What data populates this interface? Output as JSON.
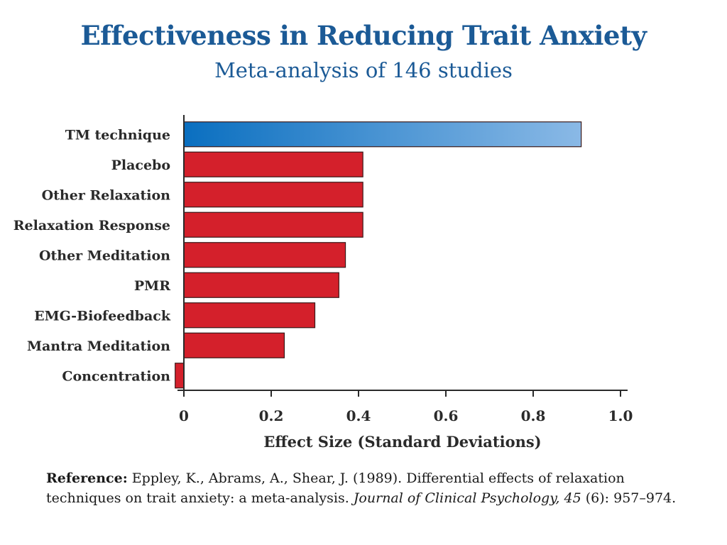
{
  "chart_data": {
    "type": "bar",
    "orientation": "horizontal",
    "title": "Effectiveness in Reducing Trait Anxiety",
    "subtitle": "Meta-analysis of 146 studies",
    "categories": [
      "TM technique",
      "Placebo",
      "Other Relaxation",
      "Relaxation Response",
      "Other Meditation",
      "PMR",
      "EMG-Biofeedback",
      "Mantra Meditation",
      "Concentration"
    ],
    "values": [
      0.91,
      0.41,
      0.41,
      0.41,
      0.37,
      0.355,
      0.3,
      0.23,
      -0.02
    ],
    "xlabel": "Effect Size (Standard Deviations)",
    "ylabel": "",
    "xlim": [
      0,
      1.0
    ],
    "xticks": [
      0,
      0.2,
      0.4,
      0.6,
      0.8,
      1.0
    ],
    "xtick_labels": [
      "0",
      "0.2",
      "0.4",
      "0.6",
      "0.8",
      "1.0"
    ],
    "colors": {
      "highlight_start": "#0a6fc0",
      "highlight_end": "#8ab9e6",
      "bar": "#d4202b",
      "bar_stroke": "#3a1a1a",
      "axis": "#2a2a2a"
    },
    "highlight_index": 0
  },
  "reference": {
    "label": "Reference:",
    "text_before": "Eppley, K., Abrams, A., Shear, J. (1989). Differential effects of relaxation techniques on trait anxiety: a meta-analysis.",
    "journal": "Journal of Clinical Psychology, 45",
    "text_after": "(6): 957–974."
  }
}
